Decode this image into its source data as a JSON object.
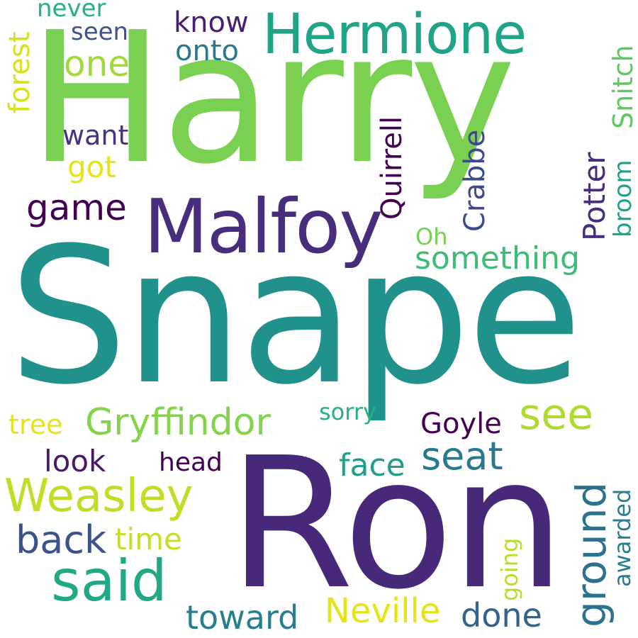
{
  "words": [
    {
      "key": "harry",
      "text": "Harry",
      "color": "#7ad151"
    },
    {
      "key": "snape",
      "text": "Snape",
      "color": "#21918c"
    },
    {
      "key": "ron",
      "text": "Ron",
      "color": "#482878"
    },
    {
      "key": "malfoy",
      "text": "Malfoy",
      "color": "#472d7b"
    },
    {
      "key": "hermione",
      "text": "Hermione",
      "color": "#20a386"
    },
    {
      "key": "weasley",
      "text": "Weasley",
      "color": "#bddf26"
    },
    {
      "key": "said",
      "text": "said",
      "color": "#22a884"
    },
    {
      "key": "gryffindor",
      "text": "Gryffindor",
      "color": "#84d44b"
    },
    {
      "key": "see",
      "text": "see",
      "color": "#addc30"
    },
    {
      "key": "seat",
      "text": "seat",
      "color": "#2a788e"
    },
    {
      "key": "ground",
      "text": "ground",
      "color": "#2c728e"
    },
    {
      "key": "something",
      "text": "something",
      "color": "#3dbc74"
    },
    {
      "key": "neville",
      "text": "Neville",
      "color": "#e5e419"
    },
    {
      "key": "done",
      "text": "done",
      "color": "#33638d"
    },
    {
      "key": "toward",
      "text": "toward",
      "color": "#277f8e"
    },
    {
      "key": "back",
      "text": "back",
      "color": "#3b528b"
    },
    {
      "key": "game",
      "text": "game",
      "color": "#440154"
    },
    {
      "key": "one",
      "text": "one",
      "color": "#a0da39"
    },
    {
      "key": "onto",
      "text": "onto",
      "color": "#2a788e"
    },
    {
      "key": "know",
      "text": "know",
      "color": "#481f70"
    },
    {
      "key": "never",
      "text": "never",
      "color": "#2ab07f"
    },
    {
      "key": "seen",
      "text": "seen",
      "color": "#3b528b"
    },
    {
      "key": "want",
      "text": "want",
      "color": "#46327e"
    },
    {
      "key": "got",
      "text": "got",
      "color": "#e5e419"
    },
    {
      "key": "forest",
      "text": "forest",
      "color": "#d8e219"
    },
    {
      "key": "quirrell",
      "text": "Quirrell",
      "color": "#440154"
    },
    {
      "key": "crabbe",
      "text": "Crabbe",
      "color": "#3e4989"
    },
    {
      "key": "potter",
      "text": "Potter",
      "color": "#472d7b"
    },
    {
      "key": "snitch",
      "text": "Snitch",
      "color": "#5ec962"
    },
    {
      "key": "broom",
      "text": "broom",
      "color": "#1fa187"
    },
    {
      "key": "oh",
      "text": "Oh",
      "color": "#75d054"
    },
    {
      "key": "tree",
      "text": "tree",
      "color": "#e5e419"
    },
    {
      "key": "sorry",
      "text": "sorry",
      "color": "#2ab07f"
    },
    {
      "key": "goyle",
      "text": "Goyle",
      "color": "#440154"
    },
    {
      "key": "look",
      "text": "look",
      "color": "#48186a"
    },
    {
      "key": "head",
      "text": "head",
      "color": "#440154"
    },
    {
      "key": "face",
      "text": "face",
      "color": "#1f9e89"
    },
    {
      "key": "time",
      "text": "time",
      "color": "#c2df23"
    },
    {
      "key": "going",
      "text": "going",
      "color": "#b5de2b"
    },
    {
      "key": "awarded",
      "text": "awarded",
      "color": "#287d8e"
    }
  ]
}
